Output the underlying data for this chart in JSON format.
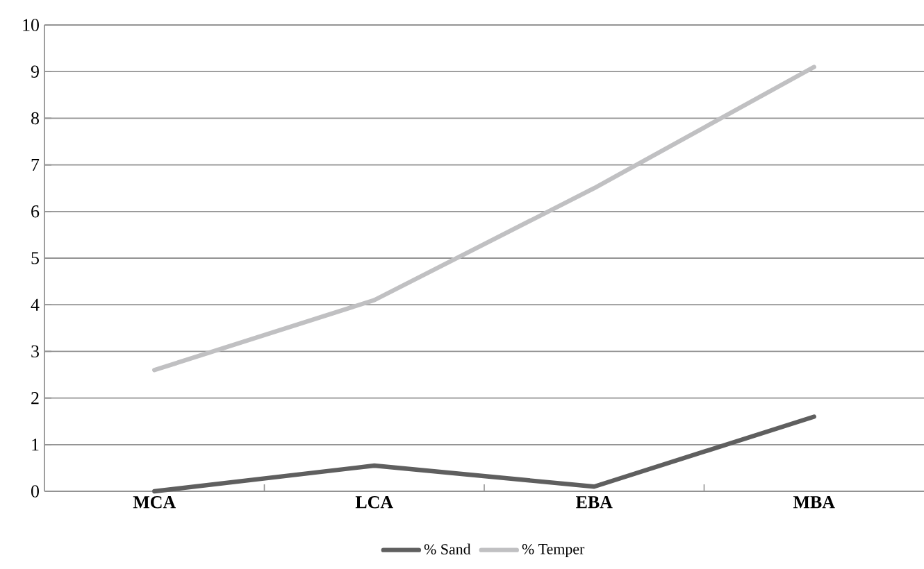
{
  "chart_data": {
    "type": "line",
    "categories": [
      "MCA",
      "LCA",
      "EBA",
      "MBA"
    ],
    "series": [
      {
        "name": "% Sand",
        "color": "#5f5f5f",
        "values": [
          0,
          0.55,
          0.1,
          1.6
        ]
      },
      {
        "name": "% Temper",
        "color": "#c0c0c2",
        "values": [
          2.6,
          4.1,
          6.5,
          9.1
        ]
      }
    ],
    "ylim": [
      0,
      10
    ],
    "yticks": [
      0,
      1,
      2,
      3,
      4,
      5,
      6,
      7,
      8,
      9,
      10
    ],
    "grid": "y",
    "legend": "bottom",
    "marker": "none",
    "line_style": "solid"
  }
}
